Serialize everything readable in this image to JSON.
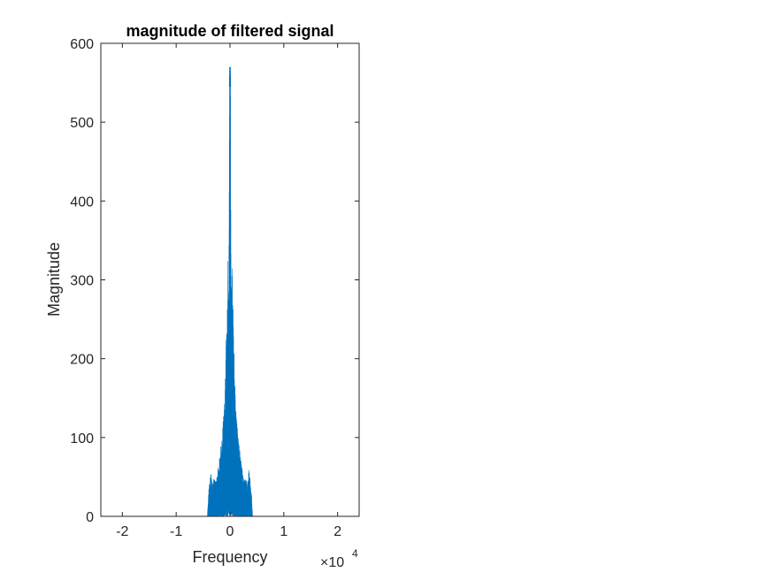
{
  "chart_data": {
    "type": "line",
    "title": "magnitude of filtered signal",
    "xlabel": "Frequency",
    "ylabel": "Magnitude",
    "x_exponent_base": "×10",
    "x_exponent_power": "4",
    "xlim": [
      -24000,
      24000
    ],
    "ylim": [
      0,
      600
    ],
    "x_ticks": [
      -20000,
      -10000,
      0,
      10000,
      20000
    ],
    "x_tick_labels": [
      "-2",
      "-1",
      "0",
      "1",
      "2"
    ],
    "y_ticks": [
      0,
      100,
      200,
      300,
      400,
      500,
      600
    ],
    "y_tick_labels": [
      "0",
      "100",
      "200",
      "300",
      "400",
      "500",
      "600"
    ],
    "grid": false,
    "series": [
      {
        "color": "#0072BD",
        "envelope": {
          "x": [
            -24000,
            -4200,
            -4000,
            -3800,
            -3500,
            -3200,
            -3000,
            -2600,
            -2200,
            -1800,
            -1400,
            -1200,
            -1000,
            -800,
            -600,
            -400,
            -300,
            -200,
            -100,
            0,
            100,
            200,
            300,
            400,
            600,
            800,
            1000,
            1200,
            1400,
            1800,
            2200,
            2600,
            3000,
            3200,
            3500,
            3800,
            4000,
            4200,
            24000
          ],
          "y": [
            0,
            0,
            30,
            45,
            60,
            40,
            50,
            45,
            65,
            85,
            110,
            130,
            150,
            200,
            260,
            330,
            300,
            360,
            545,
            570,
            545,
            360,
            300,
            330,
            260,
            200,
            150,
            130,
            110,
            85,
            65,
            45,
            50,
            40,
            60,
            45,
            30,
            0,
            0
          ]
        }
      }
    ]
  }
}
